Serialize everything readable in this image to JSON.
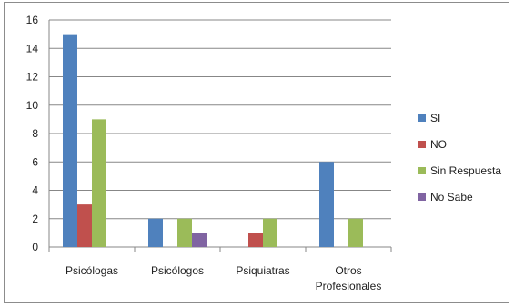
{
  "chart_data": {
    "type": "bar",
    "categories": [
      "Psicólogas",
      "Psicólogos",
      "Psiquiatras",
      "Otros Profesionales"
    ],
    "category_lines": [
      [
        "Psicólogas"
      ],
      [
        "Psicólogos"
      ],
      [
        "Psiquiatras"
      ],
      [
        "Otros",
        "Profesionales"
      ]
    ],
    "series": [
      {
        "name": "SI",
        "color": "#4f81bd",
        "values": [
          15,
          2,
          0,
          6
        ]
      },
      {
        "name": "NO",
        "color": "#c0504d",
        "values": [
          3,
          0,
          1,
          0
        ]
      },
      {
        "name": "Sin Respuesta",
        "color": "#9bbb59",
        "values": [
          9,
          2,
          2,
          2
        ]
      },
      {
        "name": "No Sabe",
        "color": "#8064a2",
        "values": [
          0,
          1,
          0,
          0
        ]
      }
    ],
    "ylim": [
      0,
      16
    ],
    "yticks": [
      0,
      2,
      4,
      6,
      8,
      10,
      12,
      14,
      16
    ],
    "grid": true,
    "legend_position": "right"
  }
}
